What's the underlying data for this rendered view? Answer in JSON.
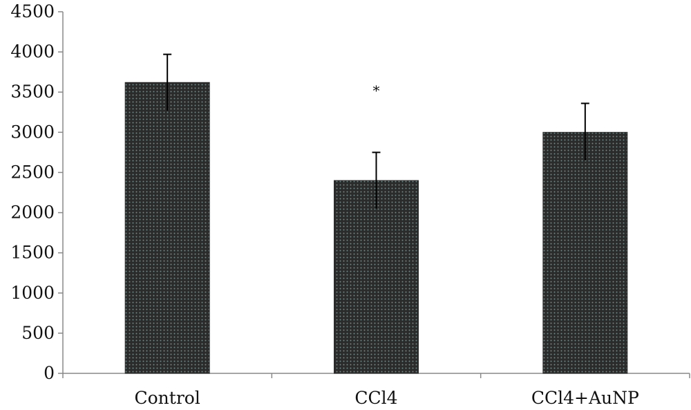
{
  "chart_data": {
    "type": "bar",
    "title": "",
    "xlabel": "",
    "ylabel": "",
    "categories": [
      "Control",
      "CCl4",
      "CCl4+AuNP"
    ],
    "values": [
      3620,
      2400,
      3000
    ],
    "error_plus": [
      350,
      350,
      360
    ],
    "error_minus": [
      350,
      350,
      350
    ],
    "annotations": [
      {
        "category_index": 1,
        "text": "*",
        "y": 3580
      }
    ],
    "ylim": [
      0,
      4500
    ],
    "yticks": [
      0,
      500,
      1000,
      1500,
      2000,
      2500,
      3000,
      3500,
      4000,
      4500
    ],
    "ytick_labels": [
      "0",
      "500",
      "1000",
      "1500",
      "2000",
      "2500",
      "3000",
      "3500",
      "4000",
      "4500"
    ],
    "grid": false,
    "legend": "none",
    "colors": {
      "bar_fill": "#2b2b2b",
      "bar_dot": "#6e8a86",
      "axis": "#888888",
      "error_bar": "#000000"
    }
  }
}
